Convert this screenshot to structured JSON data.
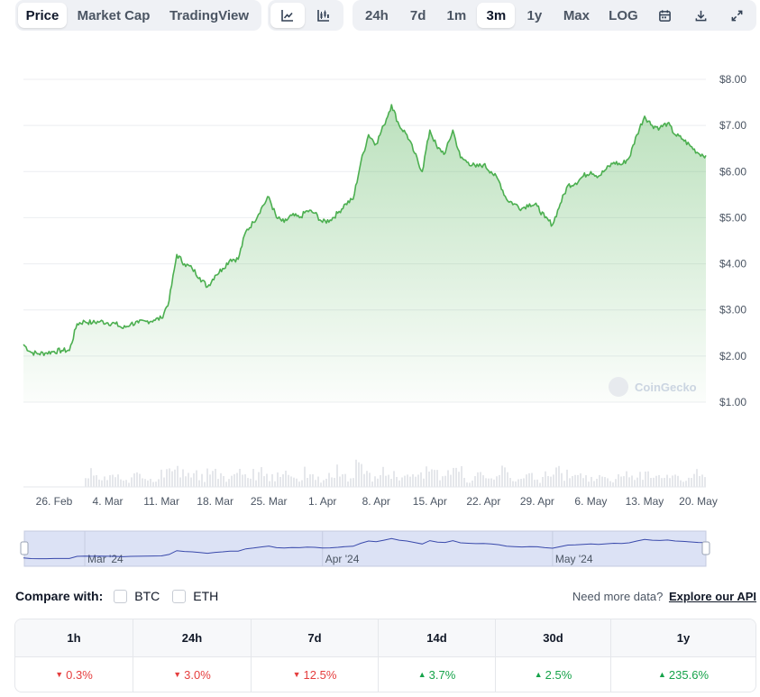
{
  "toolbar": {
    "metric_tabs": [
      {
        "label": "Price",
        "active": true
      },
      {
        "label": "Market Cap",
        "active": false
      },
      {
        "label": "TradingView",
        "active": false
      }
    ],
    "chart_types": [
      {
        "icon": "line-chart-icon",
        "active": true
      },
      {
        "icon": "candlestick-chart-icon",
        "active": false
      }
    ],
    "ranges": [
      {
        "label": "24h",
        "active": false
      },
      {
        "label": "7d",
        "active": false
      },
      {
        "label": "1m",
        "active": false
      },
      {
        "label": "3m",
        "active": true
      },
      {
        "label": "1y",
        "active": false
      },
      {
        "label": "Max",
        "active": false
      },
      {
        "label": "LOG",
        "active": false
      }
    ],
    "tools": [
      "calendar-icon",
      "download-icon",
      "expand-icon"
    ]
  },
  "chart_data": {
    "type": "area",
    "title": "",
    "xlabel": "",
    "ylabel": "",
    "ylim": [
      1,
      8
    ],
    "yticks": [
      "$1.00",
      "$2.00",
      "$3.00",
      "$4.00",
      "$5.00",
      "$6.00",
      "$7.00",
      "$8.00"
    ],
    "yticks_values": [
      1,
      2,
      3,
      4,
      5,
      6,
      7,
      8
    ],
    "xlim": [
      "2024-02-22",
      "2024-05-21"
    ],
    "xticks": [
      {
        "label": "26. Feb",
        "date": "2024-02-26"
      },
      {
        "label": "4. Mar",
        "date": "2024-03-04"
      },
      {
        "label": "11. Mar",
        "date": "2024-03-11"
      },
      {
        "label": "18. Mar",
        "date": "2024-03-18"
      },
      {
        "label": "25. Mar",
        "date": "2024-03-25"
      },
      {
        "label": "1. Apr",
        "date": "2024-04-01"
      },
      {
        "label": "8. Apr",
        "date": "2024-04-08"
      },
      {
        "label": "15. Apr",
        "date": "2024-04-15"
      },
      {
        "label": "22. Apr",
        "date": "2024-04-22"
      },
      {
        "label": "29. Apr",
        "date": "2024-04-29"
      },
      {
        "label": "6. May",
        "date": "2024-05-06"
      },
      {
        "label": "13. May",
        "date": "2024-05-13"
      },
      {
        "label": "20. May",
        "date": "2024-05-20"
      }
    ],
    "grid": true,
    "watermark": "CoinGecko",
    "colors": {
      "line": "#4caf50",
      "fill": "#4caf50",
      "volume": "#e5e7eb",
      "navigator_line": "#3949ab",
      "navigator_fill": "#dce2f5"
    },
    "series": [
      {
        "x": [
          "2024-02-22",
          "2024-02-23",
          "2024-02-24",
          "2024-02-25",
          "2024-02-26",
          "2024-02-27",
          "2024-02-28",
          "2024-02-29",
          "2024-03-01",
          "2024-03-02",
          "2024-03-03",
          "2024-03-04",
          "2024-03-05",
          "2024-03-06",
          "2024-03-07",
          "2024-03-08",
          "2024-03-09",
          "2024-03-10",
          "2024-03-11",
          "2024-03-12",
          "2024-03-13",
          "2024-03-14",
          "2024-03-15",
          "2024-03-16",
          "2024-03-17",
          "2024-03-18",
          "2024-03-19",
          "2024-03-20",
          "2024-03-21",
          "2024-03-22",
          "2024-03-23",
          "2024-03-24",
          "2024-03-25",
          "2024-03-26",
          "2024-03-27",
          "2024-03-28",
          "2024-03-29",
          "2024-03-30",
          "2024-03-31",
          "2024-04-01",
          "2024-04-02",
          "2024-04-03",
          "2024-04-04",
          "2024-04-05",
          "2024-04-06",
          "2024-04-07",
          "2024-04-08",
          "2024-04-09",
          "2024-04-10",
          "2024-04-11",
          "2024-04-12",
          "2024-04-13",
          "2024-04-14",
          "2024-04-15",
          "2024-04-16",
          "2024-04-17",
          "2024-04-18",
          "2024-04-19",
          "2024-04-20",
          "2024-04-21",
          "2024-04-22",
          "2024-04-23",
          "2024-04-24",
          "2024-04-25",
          "2024-04-26",
          "2024-04-27",
          "2024-04-28",
          "2024-04-29",
          "2024-04-30",
          "2024-05-01",
          "2024-05-02",
          "2024-05-03",
          "2024-05-04",
          "2024-05-05",
          "2024-05-06",
          "2024-05-07",
          "2024-05-08",
          "2024-05-09",
          "2024-05-10",
          "2024-05-11",
          "2024-05-12",
          "2024-05-13",
          "2024-05-14",
          "2024-05-15",
          "2024-05-16",
          "2024-05-17",
          "2024-05-18",
          "2024-05-19",
          "2024-05-20",
          "2024-05-21"
        ],
        "values": [
          2.25,
          2.08,
          2.05,
          2.07,
          2.1,
          2.12,
          2.12,
          2.7,
          2.75,
          2.72,
          2.75,
          2.72,
          2.7,
          2.6,
          2.7,
          2.72,
          2.75,
          2.78,
          2.82,
          3.2,
          4.2,
          4.0,
          3.9,
          3.7,
          3.5,
          3.75,
          3.9,
          4.1,
          4.1,
          4.7,
          4.9,
          5.2,
          5.45,
          5.0,
          4.9,
          5.05,
          5.0,
          5.15,
          5.1,
          4.9,
          4.95,
          5.1,
          5.3,
          5.4,
          6.2,
          6.8,
          6.6,
          7.0,
          7.45,
          7.0,
          6.8,
          6.4,
          6.0,
          6.9,
          6.5,
          6.4,
          6.9,
          6.3,
          6.2,
          6.1,
          6.15,
          6.0,
          5.8,
          5.4,
          5.3,
          5.2,
          5.3,
          5.25,
          5.0,
          4.85,
          5.3,
          5.7,
          5.75,
          5.9,
          6.0,
          5.9,
          6.05,
          6.2,
          6.15,
          6.3,
          6.8,
          7.2,
          7.0,
          6.95,
          7.05,
          6.8,
          6.7,
          6.55,
          6.4,
          6.35
        ]
      }
    ],
    "navigator_labels": [
      "Mar '24",
      "Apr '24",
      "May '24"
    ]
  },
  "compare": {
    "label": "Compare with:",
    "options": [
      "BTC",
      "ETH"
    ],
    "api_text": "Need more data?",
    "api_link": "Explore our API"
  },
  "performance": [
    {
      "period": "1h",
      "change": "0.3%",
      "direction": "down"
    },
    {
      "period": "24h",
      "change": "3.0%",
      "direction": "down"
    },
    {
      "period": "7d",
      "change": "12.5%",
      "direction": "down"
    },
    {
      "period": "14d",
      "change": "3.7%",
      "direction": "up"
    },
    {
      "period": "30d",
      "change": "2.5%",
      "direction": "up"
    },
    {
      "period": "1y",
      "change": "235.6%",
      "direction": "up"
    }
  ]
}
